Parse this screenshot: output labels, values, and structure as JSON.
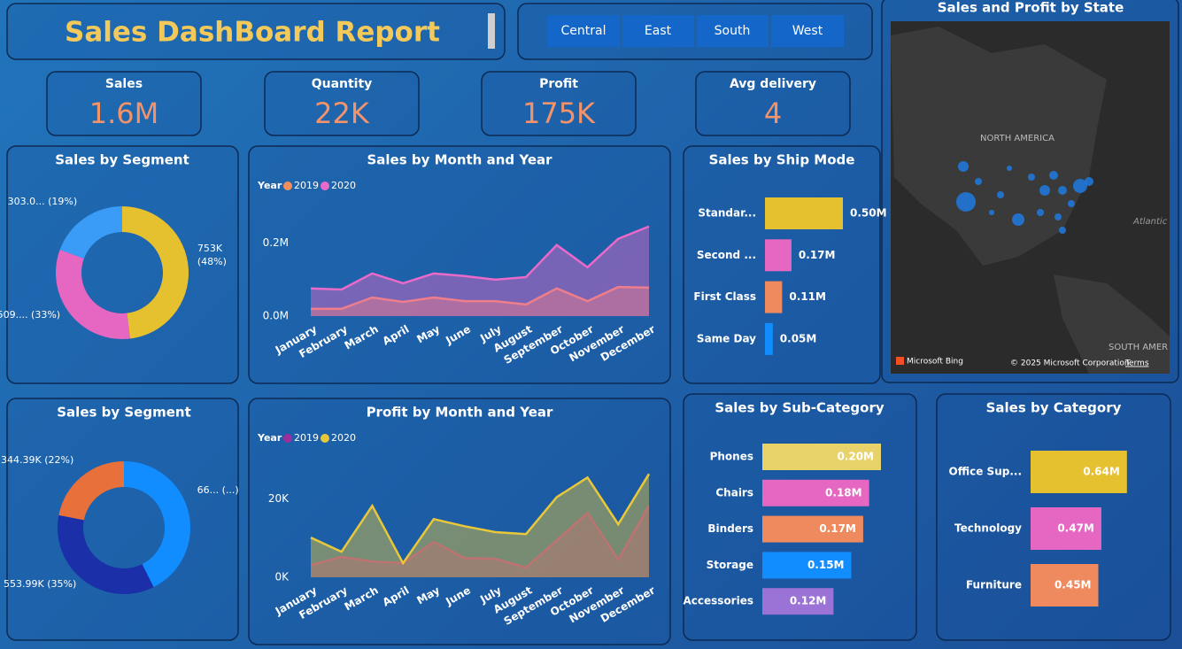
{
  "header": {
    "title": "Sales DashBoard Report"
  },
  "slicer": {
    "buttons": [
      "Central",
      "East",
      "South",
      "West"
    ]
  },
  "kpis": [
    {
      "label": "Sales",
      "value": "1.6M"
    },
    {
      "label": "Quantity",
      "value": "22K"
    },
    {
      "label": "Profit",
      "value": "175K"
    },
    {
      "label": "Avg delivery",
      "value": "4"
    }
  ],
  "map": {
    "title": "Sales and Profit by State",
    "labels": [
      "NORTH AMERICA",
      "Atlantic",
      "SOUTH AMER"
    ],
    "attribution": "Microsoft Bing",
    "copyright": "© 2025 Microsoft Corporation",
    "terms": "Terms"
  },
  "chart_data": [
    {
      "type": "donut",
      "title": "Sales by Segment",
      "values": [
        753000,
        509000,
        303000
      ],
      "value_labels": [
        "753K (48%)",
        "509.... (33%)",
        "303.0... (19%)"
      ],
      "colors": [
        "#e6c12f",
        "#e667c1",
        "#3a9cf7"
      ]
    },
    {
      "type": "area",
      "title": "Sales by Month and Year",
      "legend_title": "Year",
      "categories": [
        "January",
        "February",
        "March",
        "April",
        "May",
        "June",
        "July",
        "August",
        "September",
        "October",
        "November",
        "December"
      ],
      "series": [
        {
          "name": "2019",
          "color": "#f28e5c",
          "values": [
            20000,
            20000,
            51000,
            39000,
            51000,
            41000,
            41000,
            32000,
            76000,
            41000,
            80000,
            78000
          ]
        },
        {
          "name": "2020",
          "color": "#e96ac8",
          "values": [
            76000,
            73000,
            117000,
            90000,
            117000,
            110000,
            100000,
            107000,
            195000,
            134000,
            212000,
            246000
          ]
        }
      ],
      "ylim": [
        0,
        260000
      ],
      "yticks": [
        {
          "value": 0,
          "label": "0.0M"
        },
        {
          "value": 200000,
          "label": "0.2M"
        }
      ]
    },
    {
      "type": "hbar",
      "title": "Sales by Ship Mode",
      "label_position": "outside",
      "categories": [
        "Standar...",
        "Second ...",
        "First Class",
        "Same Day"
      ],
      "values": [
        500000,
        170000,
        110000,
        50000
      ],
      "value_labels": [
        "0.50M",
        "0.17M",
        "0.11M",
        "0.05M"
      ],
      "colors": [
        "#e6c12f",
        "#e667c1",
        "#ef8a5e",
        "#118dff"
      ]
    },
    {
      "type": "donut",
      "title": "Sales by Segment",
      "values": [
        667600,
        553990,
        344390
      ],
      "value_labels": [
        "66... (...)",
        "553.99K (35%)",
        "344.39K (22%)"
      ],
      "colors": [
        "#118dff",
        "#1a2fa8",
        "#e8703a"
      ]
    },
    {
      "type": "area",
      "title": "Profit by Month and Year",
      "legend_title": "Year",
      "categories": [
        "January",
        "February",
        "March",
        "April",
        "May",
        "June",
        "July",
        "August",
        "September",
        "October",
        "November",
        "December"
      ],
      "series": [
        {
          "name": "2019",
          "color": "#9b2f9e",
          "values": [
            3100,
            5200,
            4000,
            3600,
            9000,
            4900,
            4700,
            2500,
            9400,
            16400,
            4500,
            18200
          ]
        },
        {
          "name": "2020",
          "color": "#e8c83a",
          "values": [
            10100,
            6500,
            18200,
            3600,
            14800,
            13000,
            11500,
            11000,
            20400,
            25400,
            13500,
            26300
          ]
        }
      ],
      "ylim": [
        0,
        27500
      ],
      "yticks": [
        {
          "value": 0,
          "label": "0K"
        },
        {
          "value": 20000,
          "label": "20K"
        }
      ]
    },
    {
      "type": "hbar",
      "title": "Sales by Sub-Category",
      "label_position": "inside",
      "categories": [
        "Phones",
        "Chairs",
        "Binders",
        "Storage",
        "Accessories"
      ],
      "values": [
        200000,
        180000,
        170000,
        150000,
        120000
      ],
      "value_labels": [
        "0.20M",
        "0.18M",
        "0.17M",
        "0.15M",
        "0.12M"
      ],
      "colors": [
        "#e8d36a",
        "#e667c1",
        "#ef8a5e",
        "#118dff",
        "#9b72d6"
      ]
    },
    {
      "type": "hbar",
      "title": "Sales by Category",
      "label_position": "inside",
      "categories": [
        "Office Sup...",
        "Technology",
        "Furniture"
      ],
      "values": [
        640000,
        470000,
        450000
      ],
      "value_labels": [
        "0.64M",
        "0.47M",
        "0.45M"
      ],
      "colors": [
        "#e6c12f",
        "#e667c1",
        "#ef8a5e"
      ]
    }
  ]
}
